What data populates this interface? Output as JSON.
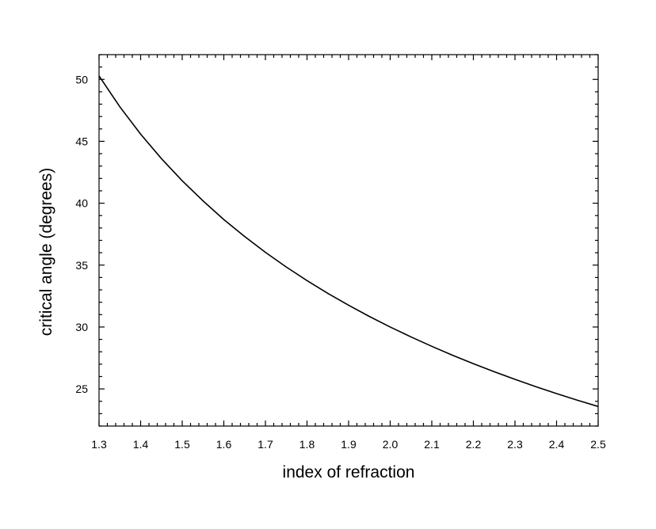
{
  "chart_data": {
    "type": "line",
    "title": "",
    "xlabel": "index of refraction",
    "ylabel": "critical angle (degrees)",
    "xlim": [
      1.3,
      2.5
    ],
    "ylim": [
      22,
      52
    ],
    "x_ticks": [
      "1.3",
      "1.4",
      "1.5",
      "1.6",
      "1.7",
      "1.8",
      "1.9",
      "2.0",
      "2.1",
      "2.2",
      "2.3",
      "2.4",
      "2.5"
    ],
    "y_ticks": [
      "25",
      "30",
      "35",
      "40",
      "45",
      "50"
    ],
    "grid": false,
    "line_color": "#000000",
    "series": [
      {
        "x": [
          1.3,
          1.35,
          1.4,
          1.45,
          1.5,
          1.55,
          1.6,
          1.65,
          1.7,
          1.75,
          1.8,
          1.85,
          1.9,
          1.95,
          2.0,
          2.05,
          2.1,
          2.15,
          2.2,
          2.25,
          2.3,
          2.35,
          2.4,
          2.45,
          2.5
        ],
        "y": [
          50.28,
          47.79,
          45.58,
          43.6,
          41.81,
          40.19,
          38.68,
          37.31,
          36.03,
          34.85,
          33.75,
          32.72,
          31.76,
          30.85,
          30.0,
          29.2,
          28.44,
          27.72,
          27.04,
          26.39,
          25.77,
          25.18,
          24.62,
          24.09,
          23.58
        ]
      }
    ]
  }
}
